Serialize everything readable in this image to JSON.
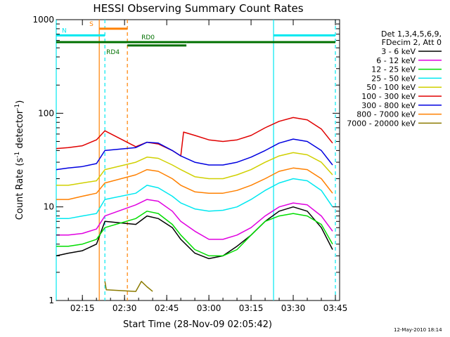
{
  "chart_data": {
    "type": "line",
    "title": "HESSI Observing Summary Count Rates",
    "xlabel": "Start Time (28-Nov-09 02:05:42)",
    "ylabel_main": "Count Rate (s",
    "ylabel_sup1": "-1",
    "ylabel_mid": " detector",
    "ylabel_sup2": "-1",
    "ylabel_end": ")",
    "y_scale": "log",
    "ylim": [
      1,
      1000
    ],
    "xlim": [
      "02:05:42",
      "03:46:30"
    ],
    "x_ticks": [
      "02:15",
      "02:30",
      "02:45",
      "03:00",
      "03:15",
      "03:30",
      "03:45"
    ],
    "y_ticks": [
      "1",
      "10",
      "100",
      "1000"
    ],
    "legend_header": [
      "Det 1,3,4,5,6,9,",
      "FDecim 2, Att 0"
    ],
    "series": [
      {
        "name": "3 - 6 keV",
        "color": "#000000",
        "points": [
          [
            "02:05:42",
            3.0
          ],
          [
            "02:10",
            3.2
          ],
          [
            "02:15",
            3.4
          ],
          [
            "02:20",
            4.0
          ],
          [
            "02:23",
            7.0
          ],
          [
            "02:34",
            6.5
          ],
          [
            "02:38",
            8.0
          ],
          [
            "02:42",
            7.5
          ],
          [
            "02:47",
            6.0
          ],
          [
            "02:50",
            4.5
          ],
          [
            "02:55",
            3.2
          ],
          [
            "03:00",
            2.8
          ],
          [
            "03:05",
            3.0
          ],
          [
            "03:10",
            3.8
          ],
          [
            "03:15",
            5.0
          ],
          [
            "03:20",
            7.0
          ],
          [
            "03:25",
            9.0
          ],
          [
            "03:30",
            10.0
          ],
          [
            "03:35",
            9.0
          ],
          [
            "03:40",
            6.0
          ],
          [
            "03:44",
            3.5
          ]
        ]
      },
      {
        "name": "6 - 12 keV",
        "color": "#e000e0",
        "points": [
          [
            "02:05:42",
            5.0
          ],
          [
            "02:10",
            5.0
          ],
          [
            "02:15",
            5.2
          ],
          [
            "02:20",
            5.8
          ],
          [
            "02:23",
            8.0
          ],
          [
            "02:34",
            10.5
          ],
          [
            "02:38",
            12.0
          ],
          [
            "02:42",
            11.5
          ],
          [
            "02:47",
            9.0
          ],
          [
            "02:50",
            7.0
          ],
          [
            "02:55",
            5.5
          ],
          [
            "03:00",
            4.5
          ],
          [
            "03:05",
            4.5
          ],
          [
            "03:10",
            5.0
          ],
          [
            "03:15",
            6.0
          ],
          [
            "03:20",
            8.0
          ],
          [
            "03:25",
            10.0
          ],
          [
            "03:30",
            11.0
          ],
          [
            "03:35",
            10.5
          ],
          [
            "03:40",
            8.0
          ],
          [
            "03:44",
            5.5
          ]
        ]
      },
      {
        "name": "12 - 25 keV",
        "color": "#00dd00",
        "points": [
          [
            "02:05:42",
            3.8
          ],
          [
            "02:10",
            3.8
          ],
          [
            "02:15",
            4.0
          ],
          [
            "02:20",
            4.5
          ],
          [
            "02:23",
            6.0
          ],
          [
            "02:34",
            7.5
          ],
          [
            "02:38",
            9.0
          ],
          [
            "02:42",
            8.5
          ],
          [
            "02:47",
            6.5
          ],
          [
            "02:50",
            5.0
          ],
          [
            "02:55",
            3.5
          ],
          [
            "03:00",
            3.0
          ],
          [
            "03:05",
            3.0
          ],
          [
            "03:10",
            3.5
          ],
          [
            "03:15",
            5.0
          ],
          [
            "03:20",
            7.0
          ],
          [
            "03:25",
            8.0
          ],
          [
            "03:30",
            8.5
          ],
          [
            "03:35",
            8.0
          ],
          [
            "03:40",
            6.5
          ],
          [
            "03:44",
            4.0
          ]
        ]
      },
      {
        "name": "25 - 50 keV",
        "color": "#00e8f0",
        "points": [
          [
            "02:05:42",
            7.5
          ],
          [
            "02:10",
            7.5
          ],
          [
            "02:15",
            8.0
          ],
          [
            "02:20",
            8.5
          ],
          [
            "02:23",
            12.0
          ],
          [
            "02:34",
            14.0
          ],
          [
            "02:38",
            17.0
          ],
          [
            "02:42",
            16.0
          ],
          [
            "02:47",
            13.0
          ],
          [
            "02:50",
            11.0
          ],
          [
            "02:55",
            9.5
          ],
          [
            "03:00",
            9.0
          ],
          [
            "03:05",
            9.2
          ],
          [
            "03:10",
            10.0
          ],
          [
            "03:15",
            12.0
          ],
          [
            "03:20",
            15.0
          ],
          [
            "03:25",
            18.0
          ],
          [
            "03:30",
            20.0
          ],
          [
            "03:35",
            19.0
          ],
          [
            "03:40",
            15.0
          ],
          [
            "03:44",
            10.0
          ]
        ]
      },
      {
        "name": "50 - 100 keV",
        "color": "#d0d000",
        "points": [
          [
            "02:05:42",
            17.0
          ],
          [
            "02:10",
            17.0
          ],
          [
            "02:15",
            18.0
          ],
          [
            "02:20",
            19.0
          ],
          [
            "02:23",
            25.0
          ],
          [
            "02:34",
            30.0
          ],
          [
            "02:38",
            34.0
          ],
          [
            "02:42",
            33.0
          ],
          [
            "02:47",
            28.0
          ],
          [
            "02:50",
            25.0
          ],
          [
            "02:55",
            21.0
          ],
          [
            "03:00",
            20.0
          ],
          [
            "03:05",
            20.0
          ],
          [
            "03:10",
            22.0
          ],
          [
            "03:15",
            25.0
          ],
          [
            "03:20",
            30.0
          ],
          [
            "03:25",
            35.0
          ],
          [
            "03:30",
            38.0
          ],
          [
            "03:35",
            36.0
          ],
          [
            "03:40",
            30.0
          ],
          [
            "03:44",
            22.0
          ]
        ]
      },
      {
        "name": "100 - 300 keV",
        "color": "#e00000",
        "points": [
          [
            "02:05:42",
            42.0
          ],
          [
            "02:10",
            43.0
          ],
          [
            "02:15",
            45.0
          ],
          [
            "02:20",
            52.0
          ],
          [
            "02:23",
            65.0
          ],
          [
            "02:34",
            44.0
          ],
          [
            "02:38",
            49.0
          ],
          [
            "02:42",
            47.0
          ],
          [
            "02:47",
            40.0
          ],
          [
            "02:50",
            35.0
          ],
          [
            "02:51",
            63.0
          ],
          [
            "02:55",
            58.0
          ],
          [
            "03:00",
            52.0
          ],
          [
            "03:05",
            50.0
          ],
          [
            "03:10",
            52.0
          ],
          [
            "03:15",
            58.0
          ],
          [
            "03:20",
            70.0
          ],
          [
            "03:25",
            82.0
          ],
          [
            "03:30",
            90.0
          ],
          [
            "03:35",
            85.0
          ],
          [
            "03:40",
            68.0
          ],
          [
            "03:44",
            48.0
          ]
        ]
      },
      {
        "name": "300 - 800 keV",
        "color": "#0000e0",
        "points": [
          [
            "02:05:42",
            25.0
          ],
          [
            "02:10",
            26.0
          ],
          [
            "02:15",
            27.0
          ],
          [
            "02:20",
            29.0
          ],
          [
            "02:23",
            40.0
          ],
          [
            "02:34",
            43.0
          ],
          [
            "02:38",
            49.0
          ],
          [
            "02:42",
            48.0
          ],
          [
            "02:47",
            40.0
          ],
          [
            "02:50",
            35.0
          ],
          [
            "02:55",
            30.0
          ],
          [
            "03:00",
            28.0
          ],
          [
            "03:05",
            28.0
          ],
          [
            "03:10",
            30.0
          ],
          [
            "03:15",
            34.0
          ],
          [
            "03:20",
            40.0
          ],
          [
            "03:25",
            48.0
          ],
          [
            "03:30",
            53.0
          ],
          [
            "03:35",
            50.0
          ],
          [
            "03:40",
            40.0
          ],
          [
            "03:44",
            28.0
          ]
        ]
      },
      {
        "name": "800 - 7000 keV",
        "color": "#ff8000",
        "points": [
          [
            "02:05:42",
            12.0
          ],
          [
            "02:10",
            12.0
          ],
          [
            "02:15",
            13.0
          ],
          [
            "02:20",
            14.0
          ],
          [
            "02:23",
            18.0
          ],
          [
            "02:34",
            22.0
          ],
          [
            "02:38",
            25.0
          ],
          [
            "02:42",
            24.0
          ],
          [
            "02:47",
            20.0
          ],
          [
            "02:50",
            17.0
          ],
          [
            "02:55",
            14.5
          ],
          [
            "03:00",
            14.0
          ],
          [
            "03:05",
            14.0
          ],
          [
            "03:10",
            15.0
          ],
          [
            "03:15",
            17.0
          ],
          [
            "03:20",
            20.0
          ],
          [
            "03:25",
            24.0
          ],
          [
            "03:30",
            26.0
          ],
          [
            "03:35",
            25.0
          ],
          [
            "03:40",
            20.0
          ],
          [
            "03:44",
            14.0
          ]
        ]
      },
      {
        "name": "7000 - 20000 keV",
        "color": "#8b7a00",
        "points": [
          [
            "02:23",
            1.6
          ],
          [
            "02:23:30",
            1.3
          ],
          [
            "02:34",
            1.25
          ],
          [
            "02:36",
            1.6
          ],
          [
            "02:38",
            1.4
          ],
          [
            "02:40",
            1.25
          ]
        ]
      }
    ],
    "vertical_markers": [
      {
        "time": "02:05:42",
        "color": "#00e8f0",
        "style": "solid"
      },
      {
        "time": "02:21",
        "color": "#ff8000",
        "style": "solid"
      },
      {
        "time": "02:23",
        "color": "#00e8f0",
        "style": "dashed"
      },
      {
        "time": "02:31",
        "color": "#ff8000",
        "style": "dashed"
      },
      {
        "time": "03:23",
        "color": "#00e8f0",
        "style": "solid"
      },
      {
        "time": "03:45",
        "color": "#00e8f0",
        "style": "dashed"
      }
    ],
    "flag_bars": [
      {
        "label": "S",
        "color": "#ff8000",
        "start": "02:21",
        "end": "02:31",
        "y": 800
      },
      {
        "label": "N",
        "color": "#00e8f0",
        "start": "02:05:42",
        "end": "02:23",
        "y": 680
      },
      {
        "label": "",
        "color": "#00e8f0",
        "start": "03:23",
        "end": "03:45",
        "y": 680
      },
      {
        "label": "RD0",
        "color": "#007000",
        "start": "02:05:42",
        "end": "02:52",
        "y": 575
      },
      {
        "label": "",
        "color": "#007000",
        "start": "02:52",
        "end": "03:45",
        "y": 575
      },
      {
        "label": "RD4",
        "color": "#007000",
        "start": "02:31",
        "end": "02:52",
        "y": 530
      }
    ],
    "grid": false,
    "legend_position": "right"
  },
  "timestamp": "12-May-2010 18:14"
}
